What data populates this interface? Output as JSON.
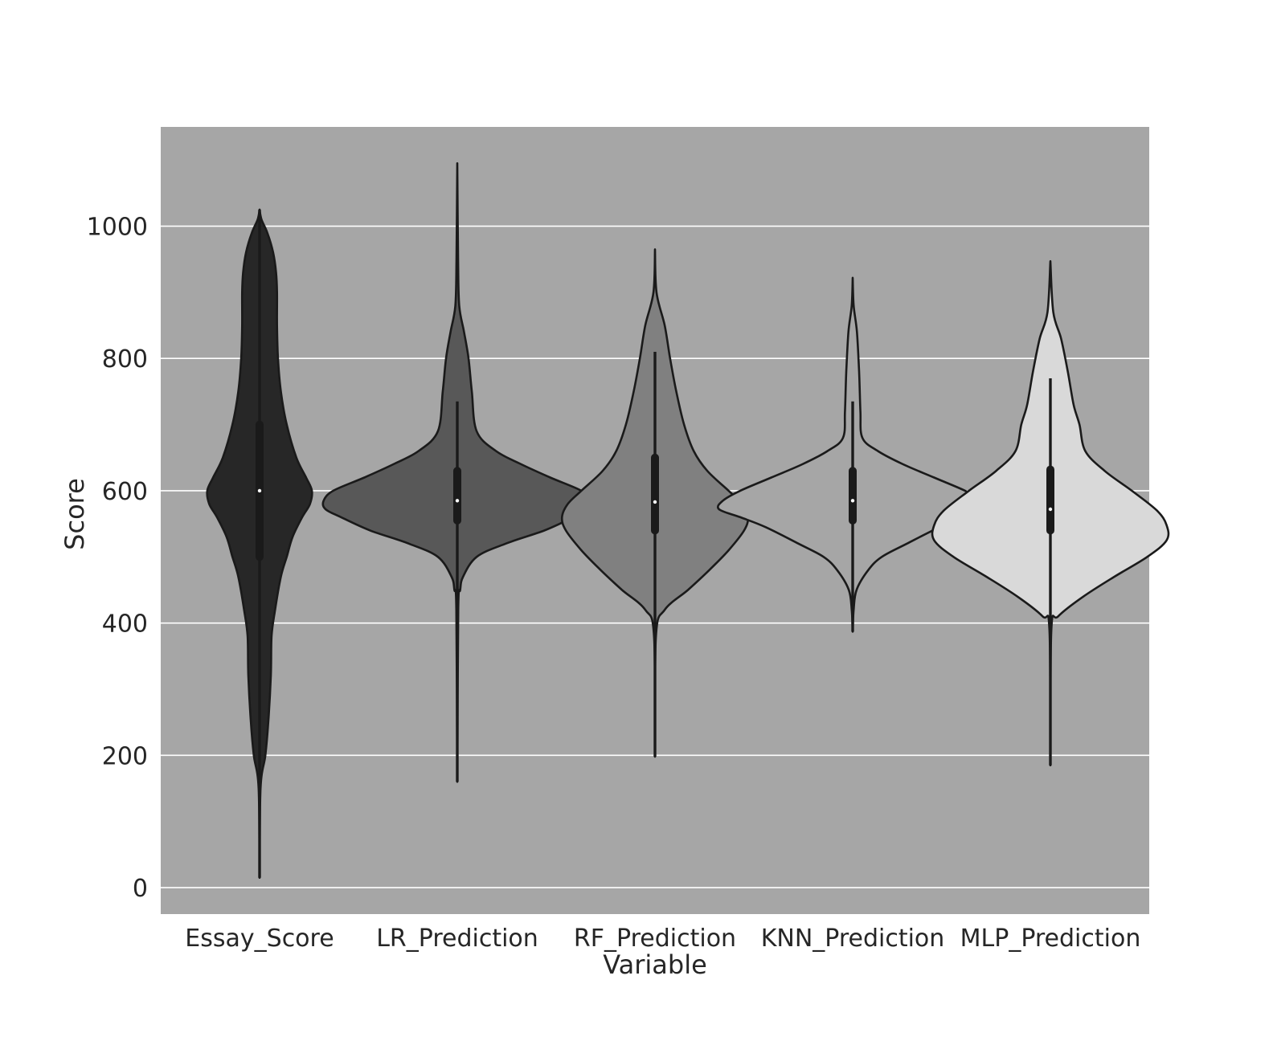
{
  "chart_data": {
    "type": "violin",
    "xlabel": "Variable",
    "ylabel": "Score",
    "ylim": [
      -40,
      1150
    ],
    "yticks": [
      0,
      200,
      400,
      600,
      800,
      1000
    ],
    "grid": "horizontal",
    "legend": "none",
    "colors": {
      "plot_background": "#a6a6a6",
      "grid": "#ffffff",
      "outline": "#1a1a1a",
      "tick_text": "#262626"
    },
    "categories": [
      "Essay_Score",
      "LR_Prediction",
      "RF_Prediction",
      "KNN_Prediction",
      "MLP_Prediction"
    ],
    "violins": [
      {
        "category": "Essay_Score",
        "fill": "#272727",
        "min": 15,
        "q1": 500,
        "median": 600,
        "q3": 700,
        "max": 1025,
        "whisker_low": 15,
        "whisker_high": 1025,
        "profile": [
          [
            15,
            0
          ],
          [
            150,
            0.005
          ],
          [
            200,
            0.03
          ],
          [
            250,
            0.045
          ],
          [
            320,
            0.058
          ],
          [
            380,
            0.062
          ],
          [
            420,
            0.08
          ],
          [
            470,
            0.11
          ],
          [
            500,
            0.14
          ],
          [
            530,
            0.17
          ],
          [
            560,
            0.22
          ],
          [
            580,
            0.26
          ],
          [
            600,
            0.27
          ],
          [
            620,
            0.24
          ],
          [
            650,
            0.19
          ],
          [
            700,
            0.14
          ],
          [
            750,
            0.11
          ],
          [
            800,
            0.095
          ],
          [
            850,
            0.09
          ],
          [
            900,
            0.09
          ],
          [
            930,
            0.085
          ],
          [
            960,
            0.07
          ],
          [
            990,
            0.04
          ],
          [
            1010,
            0.01
          ],
          [
            1025,
            0
          ]
        ]
      },
      {
        "category": "LR_Prediction",
        "fill": "#585858",
        "min": 160,
        "q1": 555,
        "median": 585,
        "q3": 630,
        "max": 1095,
        "whisker_low": 160,
        "whisker_high": 735,
        "profile": [
          [
            160,
            0
          ],
          [
            420,
            0.005
          ],
          [
            450,
            0.015
          ],
          [
            470,
            0.03
          ],
          [
            500,
            0.1
          ],
          [
            520,
            0.25
          ],
          [
            540,
            0.45
          ],
          [
            560,
            0.6
          ],
          [
            572,
            0.68
          ],
          [
            585,
            0.69
          ],
          [
            600,
            0.64
          ],
          [
            620,
            0.48
          ],
          [
            640,
            0.33
          ],
          [
            660,
            0.2
          ],
          [
            690,
            0.1
          ],
          [
            750,
            0.075
          ],
          [
            800,
            0.058
          ],
          [
            840,
            0.035
          ],
          [
            880,
            0.01
          ],
          [
            950,
            0.004
          ],
          [
            1095,
            0
          ]
        ]
      },
      {
        "category": "RF_Prediction",
        "fill": "#808080",
        "min": 198,
        "q1": 540,
        "median": 583,
        "q3": 650,
        "max": 965,
        "whisker_low": 198,
        "whisker_high": 810,
        "profile": [
          [
            198,
            0
          ],
          [
            380,
            0.005
          ],
          [
            420,
            0.05
          ],
          [
            450,
            0.17
          ],
          [
            480,
            0.28
          ],
          [
            510,
            0.38
          ],
          [
            540,
            0.46
          ],
          [
            560,
            0.48
          ],
          [
            580,
            0.45
          ],
          [
            600,
            0.38
          ],
          [
            630,
            0.27
          ],
          [
            660,
            0.2
          ],
          [
            700,
            0.15
          ],
          [
            750,
            0.11
          ],
          [
            800,
            0.078
          ],
          [
            850,
            0.05
          ],
          [
            900,
            0.008
          ],
          [
            965,
            0
          ]
        ]
      },
      {
        "category": "KNN_Prediction",
        "fill": "#a6a6a6",
        "min": 387,
        "q1": 555,
        "median": 585,
        "q3": 630,
        "max": 922,
        "whisker_low": 387,
        "whisker_high": 735,
        "profile": [
          [
            387,
            0
          ],
          [
            420,
            0.005
          ],
          [
            450,
            0.02
          ],
          [
            480,
            0.08
          ],
          [
            500,
            0.15
          ],
          [
            520,
            0.28
          ],
          [
            545,
            0.45
          ],
          [
            560,
            0.58
          ],
          [
            572,
            0.69
          ],
          [
            585,
            0.67
          ],
          [
            600,
            0.58
          ],
          [
            620,
            0.42
          ],
          [
            640,
            0.26
          ],
          [
            660,
            0.13
          ],
          [
            680,
            0.05
          ],
          [
            720,
            0.04
          ],
          [
            780,
            0.033
          ],
          [
            840,
            0.022
          ],
          [
            880,
            0.005
          ],
          [
            922,
            0
          ]
        ]
      },
      {
        "category": "MLP_Prediction",
        "fill": "#d9d9d9",
        "min": 185,
        "q1": 540,
        "median": 572,
        "q3": 632,
        "max": 947,
        "whisker_low": 185,
        "whisker_high": 770,
        "profile": [
          [
            185,
            0
          ],
          [
            390,
            0.005
          ],
          [
            410,
            0.04
          ],
          [
            440,
            0.17
          ],
          [
            470,
            0.33
          ],
          [
            500,
            0.5
          ],
          [
            525,
            0.6
          ],
          [
            548,
            0.6
          ],
          [
            570,
            0.55
          ],
          [
            600,
            0.42
          ],
          [
            630,
            0.28
          ],
          [
            660,
            0.18
          ],
          [
            700,
            0.15
          ],
          [
            730,
            0.12
          ],
          [
            780,
            0.09
          ],
          [
            830,
            0.055
          ],
          [
            870,
            0.015
          ],
          [
            947,
            0
          ]
        ]
      }
    ]
  }
}
